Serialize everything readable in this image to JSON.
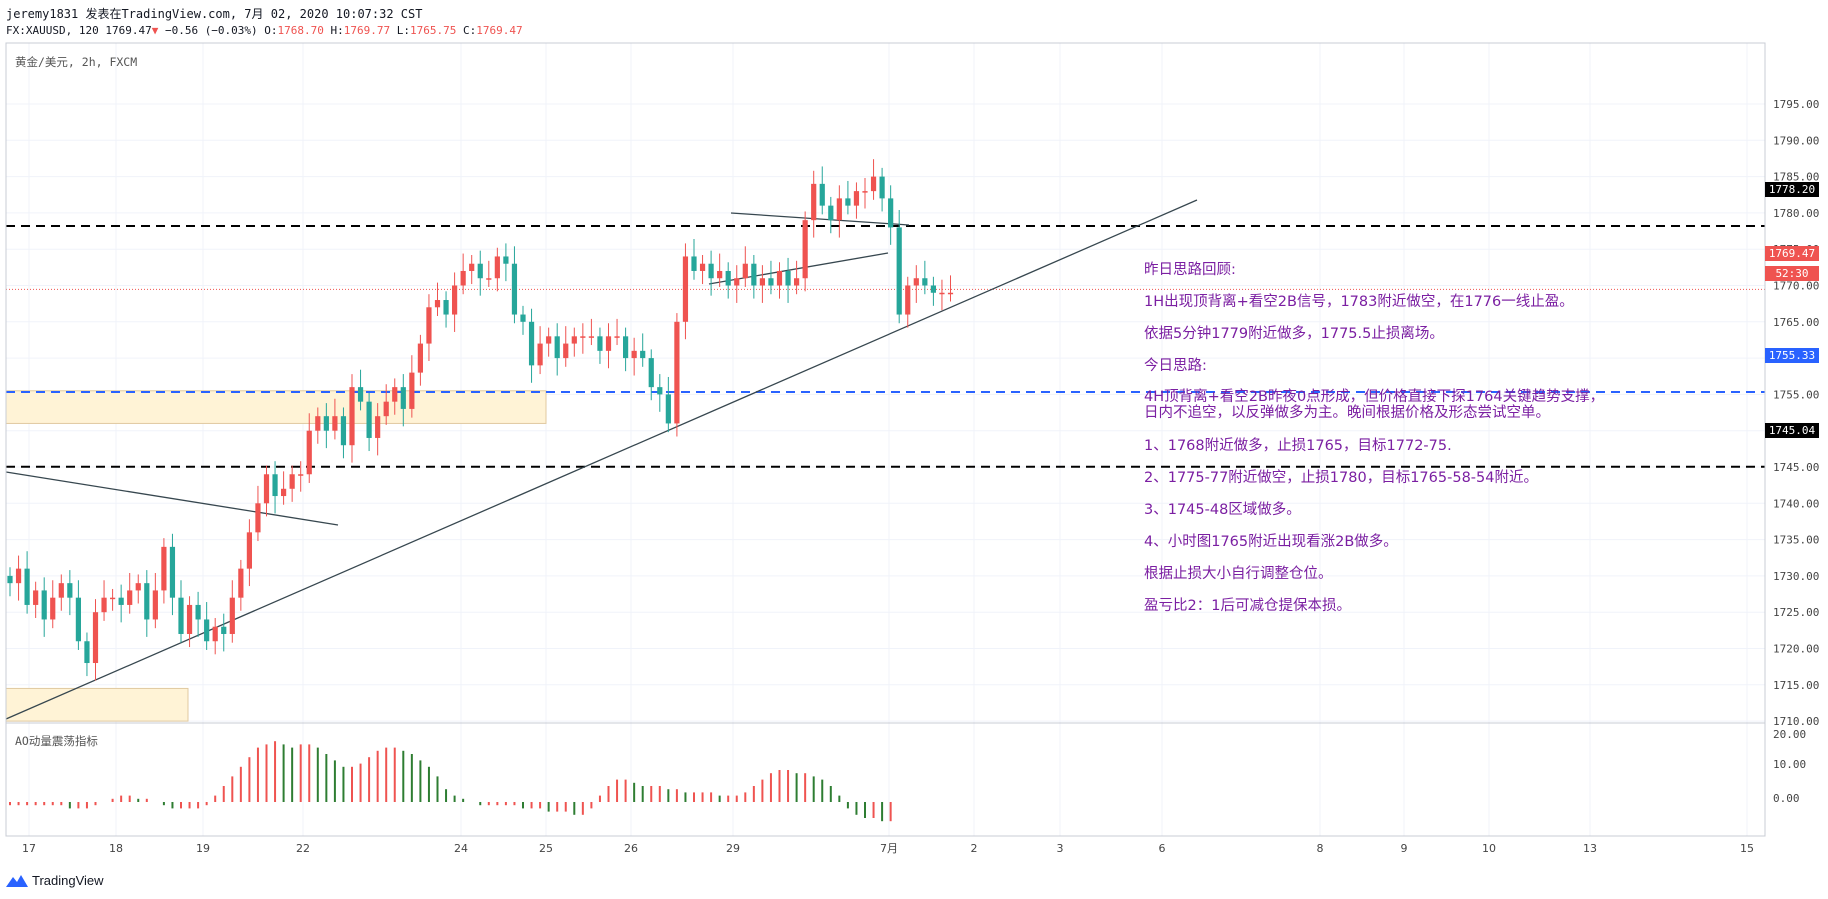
{
  "header": {
    "user": "jeremy1831",
    "published": "发表在TradingView.com, 7月 02, 2020 10:07:32 CST",
    "symbol": "FX:XAUUSD, 120",
    "last": "1769.47",
    "change": "−0.56 (−0.03%)",
    "open_label": "O:",
    "open": "1768.70",
    "high_label": "H:",
    "high": "1769.77",
    "low_label": "L:",
    "low": "1765.75",
    "close_label": "C:",
    "close": "1769.47"
  },
  "pane_title": "黄金/美元, 2h, FXCM",
  "indicator_title": "AO动量震荡指标",
  "price_labels": {
    "line_1778": "1778.20",
    "last_price": "1769.47",
    "countdown": "52:30",
    "line_1755": "1755.33",
    "line_1745": "1745.04"
  },
  "annotations": [
    "昨日思路回顾:",
    "1H出现顶背离+看空2B信号，1783附近做空，在1776一线止盈。",
    "依据5分钟1779附近做多，1775.5止损离场。",
    "今日思路:",
    "4H顶背离+看空2B昨夜0点形成，但价格直接下探1764关键趋势支撑，",
    "日内不追空，以反弹做多为主。晚间根据价格及形态尝试空单。",
    "1、1768附近做多，止损1765，目标1772-75.",
    "2、1775-77附近做空，止损1780，目标1765-58-54附近。",
    "3、1745-48区域做多。",
    "4、小时图1765附近出现看涨2B做多。",
    "根据止损大小自行调整仓位。",
    "盈亏比2：1后可减仓提保本损。"
  ],
  "footer": {
    "brand": "TradingView"
  },
  "colors": {
    "up": "#ef5350",
    "down": "#26a69a",
    "ao_up": "#ef5350",
    "ao_down": "#2e7d32",
    "black_line": "#000000",
    "blue_line": "#2962ff",
    "annotation": "#7b1fa2",
    "zone": "#fff3d6"
  },
  "chart_data": {
    "type": "candlestick",
    "symbol": "XAUUSD",
    "timeframe": "2h",
    "y_axis_ticks": [
      1795,
      1790,
      1785,
      1780,
      1775,
      1770,
      1765,
      1760,
      1755,
      1750,
      1745,
      1740,
      1735,
      1730,
      1725,
      1720,
      1715,
      1710
    ],
    "ylim": [
      1705,
      1798
    ],
    "x_axis_ticks": [
      "17",
      "18",
      "19",
      "22",
      "24",
      "25",
      "26",
      "29",
      "7月",
      "2",
      "3",
      "6",
      "8",
      "9",
      "10",
      "13",
      "15"
    ],
    "horizontal_levels": [
      {
        "value": 1778.2,
        "style": "dashed",
        "color": "black"
      },
      {
        "value": 1755.33,
        "style": "dashed",
        "color": "blue"
      },
      {
        "value": 1745.04,
        "style": "dashed",
        "color": "black"
      }
    ],
    "last_price": 1769.47,
    "zones": [
      {
        "from": 1751,
        "to": 1755.5,
        "color": "light-orange"
      },
      {
        "from": 1710,
        "to": 1714.5,
        "color": "light-orange"
      }
    ],
    "candles_close_approx": [
      1729,
      1731,
      1726,
      1728,
      1724,
      1727,
      1729,
      1727,
      1721,
      1718,
      1725,
      1727,
      1727,
      1726,
      1728,
      1729,
      1724,
      1728,
      1734,
      1727,
      1722,
      1726,
      1724,
      1721,
      1723,
      1722,
      1727,
      1731,
      1736,
      1740,
      1744,
      1741,
      1742,
      1744,
      1744,
      1750,
      1752,
      1750,
      1752,
      1748,
      1756,
      1754,
      1749,
      1752,
      1754,
      1756,
      1753,
      1758,
      1762,
      1767,
      1768,
      1766,
      1770,
      1772,
      1773,
      1771,
      1771,
      1774,
      1773,
      1766,
      1765,
      1759,
      1762,
      1763,
      1760,
      1762,
      1763,
      1763,
      1763,
      1761,
      1763,
      1763,
      1760,
      1761,
      1760,
      1756,
      1755,
      1751,
      1765,
      1774,
      1772,
      1773,
      1771,
      1772,
      1770,
      1771,
      1773,
      1770,
      1771,
      1770,
      1772,
      1770,
      1771,
      1779,
      1784,
      1781,
      1779,
      1782,
      1781,
      1783,
      1783,
      1785,
      1782,
      1778,
      1766,
      1770,
      1771,
      1770,
      1769,
      1769,
      1769
    ],
    "ao_values_approx": [
      -1,
      -1,
      -1,
      -1,
      -1,
      -1,
      -1,
      -2,
      -2,
      -2,
      -1,
      0,
      1,
      2,
      2,
      1,
      1,
      0,
      -1,
      -2,
      -2,
      -2,
      -2,
      -1,
      2,
      5,
      8,
      11,
      14,
      17,
      18,
      19,
      18,
      17,
      18,
      18,
      17,
      15,
      13,
      11,
      11,
      12,
      14,
      16,
      17,
      17,
      16,
      15,
      13,
      11,
      8,
      4,
      2,
      1,
      0,
      -1,
      -1,
      -1,
      -1,
      -1,
      -2,
      -2,
      -2,
      -3,
      -3,
      -3,
      -4,
      -4,
      -2,
      2,
      5,
      7,
      7,
      6,
      5,
      5,
      5,
      4,
      4,
      3,
      3,
      3,
      3,
      2,
      2,
      2,
      3,
      5,
      7,
      9,
      10,
      10,
      9,
      9,
      8,
      7,
      5,
      2,
      -2,
      -4,
      -5,
      -5,
      -6,
      -6
    ]
  }
}
